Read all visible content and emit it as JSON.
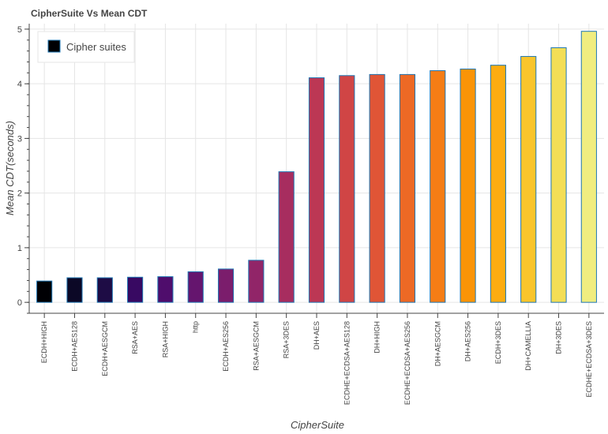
{
  "chart_data": {
    "type": "bar",
    "title": "CipherSuite Vs Mean CDT",
    "xlabel": "CipherSuite",
    "ylabel": "Mean CDT(seconds)",
    "ylim": [
      -0.2,
      5.1
    ],
    "yticks": [
      0,
      1,
      2,
      3,
      4,
      5
    ],
    "grid": true,
    "legend": {
      "label": "Cipher suites",
      "placement": "top-left"
    },
    "bar_outline_color": "#1f77b4",
    "categories": [
      "ECDH+HIGH",
      "ECDH+AES128",
      "ECDH+AESGCM",
      "RSA+AES",
      "RSA+HIGH",
      "http",
      "ECDH+AES256",
      "RSA+AESGCM",
      "RSA+3DES",
      "DH+AES",
      "ECDHE+ECDSA+AES128",
      "DH+HIGH",
      "ECDHE+ECDSA+AES256",
      "DH+AESGCM",
      "DH+AES256",
      "ECDH+3DES",
      "DH+CAMELLIA",
      "DH+3DES",
      "ECDHE+ECDSA+3DES"
    ],
    "values": [
      0.39,
      0.45,
      0.45,
      0.46,
      0.47,
      0.56,
      0.61,
      0.77,
      2.39,
      4.11,
      4.15,
      4.17,
      4.17,
      4.24,
      4.27,
      4.34,
      4.5,
      4.66,
      4.96
    ],
    "colors": [
      "#000004",
      "#0c0826",
      "#1e0c45",
      "#380962",
      "#4f0d6c",
      "#65156e",
      "#7b1d6c",
      "#912568",
      "#a72d5f",
      "#bc3754",
      "#d04545",
      "#e05536",
      "#ed6925",
      "#f57d15",
      "#fa9407",
      "#fcac11",
      "#f9c52c",
      "#f3de56",
      "#f0ed80"
    ]
  }
}
